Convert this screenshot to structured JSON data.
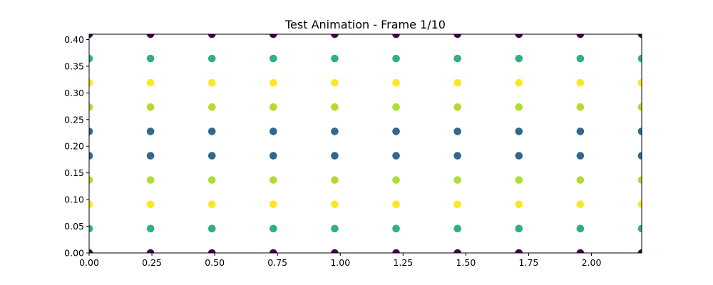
{
  "chart_data": {
    "type": "scatter",
    "title": "Test Animation - Frame 1/10",
    "xlabel": "",
    "ylabel": "",
    "xlim": [
      0,
      2.2
    ],
    "ylim": [
      0,
      0.41
    ],
    "grid": false,
    "legend": "none",
    "x_ticks": [
      0.0,
      0.25,
      0.5,
      0.75,
      1.0,
      1.25,
      1.5,
      1.75,
      2.0
    ],
    "x_tick_labels": [
      "0.00",
      "0.25",
      "0.50",
      "0.75",
      "1.00",
      "1.25",
      "1.50",
      "1.75",
      "2.00"
    ],
    "y_ticks": [
      0.0,
      0.05,
      0.1,
      0.15,
      0.2,
      0.25,
      0.3,
      0.35,
      0.4
    ],
    "y_tick_labels": [
      "0.00",
      "0.05",
      "0.10",
      "0.15",
      "0.20",
      "0.25",
      "0.30",
      "0.35",
      "0.40"
    ],
    "x_values": [
      0.0,
      0.2444,
      0.4889,
      0.7333,
      0.9778,
      1.2222,
      1.4667,
      1.7111,
      1.9556,
      2.2
    ],
    "y_values": [
      0.0,
      0.0456,
      0.0911,
      0.1367,
      0.1822,
      0.2278,
      0.2733,
      0.3189,
      0.3644,
      0.41
    ],
    "row_colors": [
      "#440154",
      "#2db27d",
      "#fde725",
      "#b0dd2f",
      "#31688e",
      "#31688e",
      "#b0dd2f",
      "#fde725",
      "#2db27d",
      "#440154"
    ]
  }
}
